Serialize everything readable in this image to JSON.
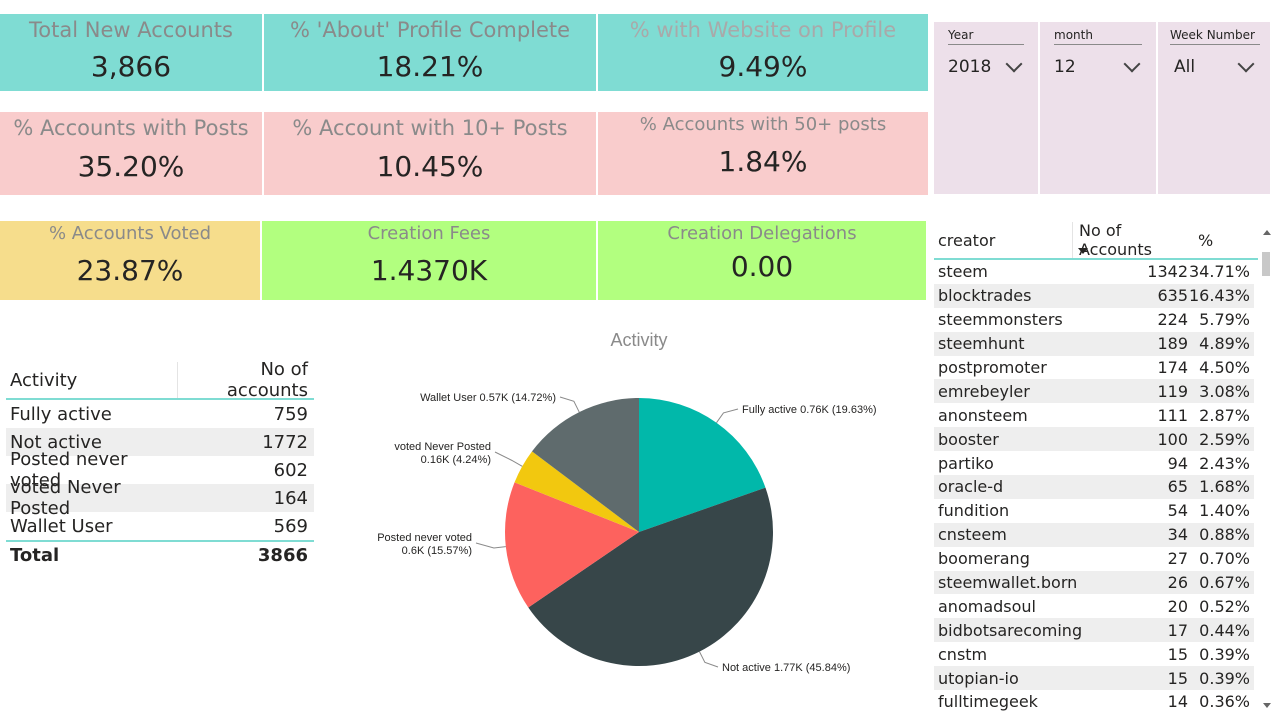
{
  "cards": [
    {
      "title": "Total New Accounts",
      "value": "3,866"
    },
    {
      "title": "% 'About' Profile Complete",
      "value": "18.21%"
    },
    {
      "title": "% with Website on Profile",
      "value": "9.49%"
    },
    {
      "title": "%  Accounts with Posts",
      "value": "35.20%"
    },
    {
      "title": "% Account with 10+ Posts",
      "value": "10.45%"
    },
    {
      "title": "% Accounts with 50+ posts",
      "value": "1.84%"
    },
    {
      "title": "% Accounts Voted",
      "value": "23.87%"
    },
    {
      "title": "Creation Fees",
      "value": "1.4370K"
    },
    {
      "title": "Creation Delegations",
      "value": "0.00"
    }
  ],
  "slicers": [
    {
      "label": "Year",
      "value": "2018"
    },
    {
      "label": "month",
      "value": "12"
    },
    {
      "label": "Week Number",
      "value": "All"
    }
  ],
  "activity_table": {
    "headers": [
      "Activity",
      "No of accounts"
    ],
    "rows": [
      {
        "activity": "Fully active",
        "count": "759"
      },
      {
        "activity": "Not active",
        "count": "1772"
      },
      {
        "activity": "Posted never voted",
        "count": "602"
      },
      {
        "activity": "voted Never Posted",
        "count": "164"
      },
      {
        "activity": "Wallet User",
        "count": "569"
      }
    ],
    "total_label": "Total",
    "total_value": "3866"
  },
  "chart_data": {
    "type": "pie",
    "title": "Activity",
    "slices": [
      {
        "name": "Fully active",
        "value": 759,
        "label": "Fully active 0.76K (19.63%)",
        "color": "#01b8aa"
      },
      {
        "name": "Not active",
        "value": 1772,
        "label": "Not active 1.77K (45.84%)",
        "color": "#374649"
      },
      {
        "name": "Posted never voted",
        "value": 602,
        "label": "Posted never voted\n0.6K (15.57%)",
        "color": "#fd625e"
      },
      {
        "name": "voted Never Posted",
        "value": 164,
        "label": "voted Never Posted\n0.16K (4.24%)",
        "color": "#f2c80f"
      },
      {
        "name": "Wallet User",
        "value": 569,
        "label": "Wallet User 0.57K (14.72%)",
        "color": "#5f6b6d"
      }
    ]
  },
  "creator_table": {
    "headers": [
      "creator",
      "No of Accounts",
      "%"
    ],
    "rows": [
      {
        "creator": "steem",
        "count": "1342",
        "pct": "34.71%"
      },
      {
        "creator": "blocktrades",
        "count": "635",
        "pct": "16.43%"
      },
      {
        "creator": "steemmonsters",
        "count": "224",
        "pct": "5.79%"
      },
      {
        "creator": "steemhunt",
        "count": "189",
        "pct": "4.89%"
      },
      {
        "creator": "postpromoter",
        "count": "174",
        "pct": "4.50%"
      },
      {
        "creator": "emrebeyler",
        "count": "119",
        "pct": "3.08%"
      },
      {
        "creator": "anonsteem",
        "count": "111",
        "pct": "2.87%"
      },
      {
        "creator": "booster",
        "count": "100",
        "pct": "2.59%"
      },
      {
        "creator": "partiko",
        "count": "94",
        "pct": "2.43%"
      },
      {
        "creator": "oracle-d",
        "count": "65",
        "pct": "1.68%"
      },
      {
        "creator": "fundition",
        "count": "54",
        "pct": "1.40%"
      },
      {
        "creator": "cnsteem",
        "count": "34",
        "pct": "0.88%"
      },
      {
        "creator": "boomerang",
        "count": "27",
        "pct": "0.70%"
      },
      {
        "creator": "steemwallet.born",
        "count": "26",
        "pct": "0.67%"
      },
      {
        "creator": "anomadsoul",
        "count": "20",
        "pct": "0.52%"
      },
      {
        "creator": "bidbotsarecoming",
        "count": "17",
        "pct": "0.44%"
      },
      {
        "creator": "cnstm",
        "count": "15",
        "pct": "0.39%"
      },
      {
        "creator": "utopian-io",
        "count": "15",
        "pct": "0.39%"
      },
      {
        "creator": "fulltimegeek",
        "count": "14",
        "pct": "0.36%"
      }
    ]
  }
}
